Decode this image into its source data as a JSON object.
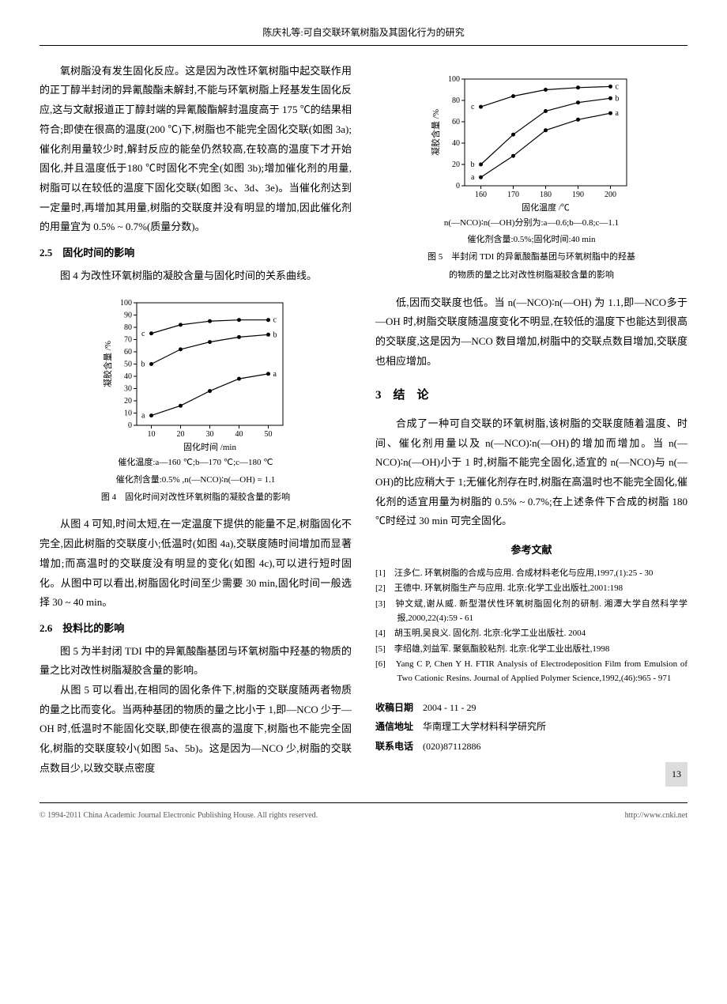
{
  "header": "陈庆礼等:可自交联环氧树脂及其固化行为的研究",
  "left": {
    "p1": "氧树脂没有发生固化反应。这是因为改性环氧树脂中起交联作用的正丁醇半封闭的异氰酸酯未解封,不能与环氧树脂上羟基发生固化反应,这与文献报道正丁醇封端的异氰酸酯解封温度高于 175 ℃的结果相符合;即使在很高的温度(200 ℃)下,树脂也不能完全固化交联(如图 3a);催化剂用量较少时,解封反应的能垒仍然较高,在较高的温度下才开始固化,并且温度低于180 ℃时固化不完全(如图 3b);增加催化剂的用量,树脂可以在较低的温度下固化交联(如图 3c、3d、3e)。当催化剂达到一定量时,再增加其用量,树脂的交联度并没有明显的增加,因此催化剂的用量宜为 0.5% ~ 0.7%(质量分数)。",
    "s25_title": "2.5　固化时间的影响",
    "s25_p1": "图 4 为改性环氧树脂的凝胶含量与固化时间的关系曲线。",
    "s25_p2": "从图 4 可知,时间太短,在一定温度下提供的能量不足,树脂固化不完全,因此树脂的交联度小;低温时(如图 4a),交联度随时间增加而显著增加;而高温时的交联度没有明显的变化(如图 4c),可以进行短时固化。从图中可以看出,树脂固化时间至少需要 30 min,固化时间一般选择 30 ~ 40 min。",
    "s26_title": "2.6　投料比的影响",
    "s26_p1": "图 5 为半封闭 TDI 中的异氰酸酯基团与环氧树脂中羟基的物质的量之比对改性树脂凝胶含量的影响。",
    "s26_p2": "从图 5 可以看出,在相同的固化条件下,树脂的交联度随两者物质的量之比而变化。当两种基团的物质的量之比小于 1,即—NCO 少于—OH 时,低温时不能固化交联,即使在很高的温度下,树脂也不能完全固化,树脂的交联度较小(如图 5a、5b)。这是因为—NCO 少,树脂的交联点数目少,以致交联点密度"
  },
  "right": {
    "p1": "低,因而交联度也低。当 n(—NCO)∶n(—OH) 为 1.1,即—NCO多于—OH 时,树脂交联度随温度变化不明显,在较低的温度下也能达到很高的交联度,这是因为—NCO 数目增加,树脂中的交联点数目增加,交联度也相应增加。",
    "s3_title": "3　结　论",
    "s3_p1": "合成了一种可自交联的环氧树脂,该树脂的交联度随着温度、时间、催化剂用量以及 n(—NCO)∶n(—OH)的增加而增加。当 n(—NCO)∶n(—OH)小于 1 时,树脂不能完全固化,适宜的 n(—NCO)与 n(—OH)的比应稍大于 1;无催化剂存在时,树脂在高温时也不能完全固化,催化剂的适宜用量为树脂的 0.5% ~ 0.7%;在上述条件下合成的树脂 180 ℃时经过 30 min 可完全固化。",
    "refs_title": "参考文献",
    "refs": [
      "[1]　汪多仁. 环氧树脂的合成与应用. 合成材料老化与应用,1997,(1):25 - 30",
      "[2]　王德中. 环氧树脂生产与应用. 北京:化学工业出版社,2001:198",
      "[3]　钟文斌,谢从威. 新型潜伏性环氧树脂固化剂的研制. 湘潭大学自然科学学报,2000,22(4):59 - 61",
      "[4]　胡玉明,吴良义. 固化剂. 北京:化学工业出版社. 2004",
      "[5]　李绍雄,刘益军. 聚氨酯胶粘剂. 北京:化学工业出版社,1998",
      "[6]　Yang C P, Chen Y H. FTIR Analysis of Electrodeposition Film from Emulsion of Two Cationic Resins. Journal of Applied Polymer Science,1992,(46):965 - 971"
    ],
    "meta": {
      "date_label": "收稿日期",
      "date": "2004 - 11 - 29",
      "addr_label": "通信地址",
      "addr": "华南理工大学材料科学研究所",
      "tel_label": "联系电话",
      "tel": "(020)87112886"
    }
  },
  "fig4": {
    "type": "line",
    "ylabel": "凝胶含量 /%",
    "xlabel": "固化时间 /min",
    "xlim": [
      5,
      55
    ],
    "ylim": [
      0,
      100
    ],
    "xticks": [
      10,
      20,
      30,
      40,
      50
    ],
    "yticks": [
      0,
      10,
      20,
      30,
      40,
      50,
      60,
      70,
      80,
      90,
      100
    ],
    "series": [
      {
        "label": "a",
        "points": [
          [
            10,
            8
          ],
          [
            20,
            16
          ],
          [
            30,
            28
          ],
          [
            40,
            38
          ],
          [
            50,
            42
          ]
        ]
      },
      {
        "label": "b",
        "points": [
          [
            10,
            50
          ],
          [
            20,
            62
          ],
          [
            30,
            68
          ],
          [
            40,
            72
          ],
          [
            50,
            74
          ]
        ]
      },
      {
        "label": "c",
        "points": [
          [
            10,
            75
          ],
          [
            20,
            82
          ],
          [
            30,
            85
          ],
          [
            40,
            86
          ],
          [
            50,
            86
          ]
        ]
      }
    ],
    "line_color": "#000",
    "caption1": "催化温度:a—160 ℃;b—170 ℃;c—180 ℃",
    "caption2": "催化剂含量:0.5% ,n(—NCO)∶n(—OH) = 1.1",
    "title": "图 4　固化时间对改性环氧树脂的凝胶含量的影响"
  },
  "fig5": {
    "type": "line",
    "ylabel": "凝胶含量 /%",
    "xlabel": "固化温度 /℃",
    "xlim": [
      155,
      205
    ],
    "ylim": [
      0,
      100
    ],
    "xticks": [
      160,
      170,
      180,
      190,
      200
    ],
    "yticks": [
      0,
      20,
      40,
      60,
      80,
      100
    ],
    "series": [
      {
        "label": "a",
        "points": [
          [
            160,
            8
          ],
          [
            170,
            28
          ],
          [
            180,
            52
          ],
          [
            190,
            62
          ],
          [
            200,
            68
          ]
        ]
      },
      {
        "label": "b",
        "points": [
          [
            160,
            20
          ],
          [
            170,
            48
          ],
          [
            180,
            70
          ],
          [
            190,
            78
          ],
          [
            200,
            82
          ]
        ]
      },
      {
        "label": "c",
        "points": [
          [
            160,
            74
          ],
          [
            170,
            84
          ],
          [
            180,
            90
          ],
          [
            190,
            92
          ],
          [
            200,
            93
          ]
        ]
      }
    ],
    "line_color": "#000",
    "caption1": "n(—NCO)∶n(—OH)分别为:a—0.6;b—0.8;c—1.1",
    "caption2": "催化剂含量:0.5%;固化时间:40 min",
    "title": "图 5　半封闭 TDI 的异氰酸酯基团与环氧树脂中的羟基",
    "title2": "的物质的量之比对改性树脂凝胶含量的影响"
  },
  "footer": {
    "left": "© 1994-2011 China Academic Journal Electronic Publishing House. All rights reserved.",
    "right": "http://www.cnki.net"
  },
  "page": "13"
}
